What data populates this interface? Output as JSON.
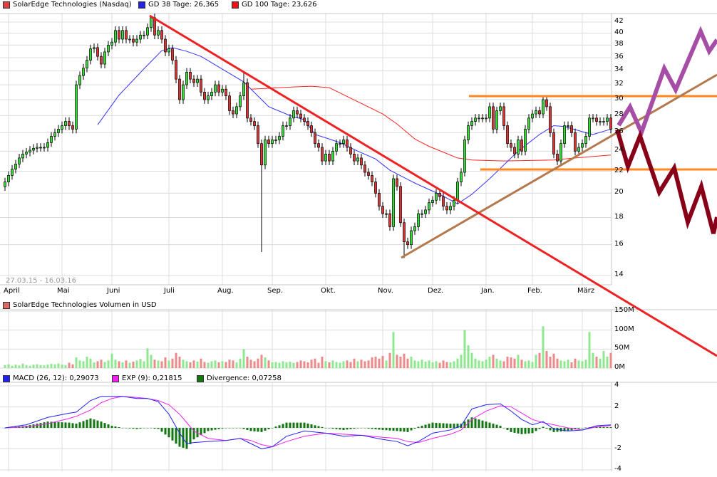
{
  "legend": {
    "price_label": "SolarEdge Technologies (Nasdaq)",
    "gd38_label": "GD 38 Tage: 26,365",
    "gd100_label": "GD 100 Tage: 23,626",
    "volume_label": "SolarEdge Technologies Volumen in USD",
    "macd_label": "MACD (26, 12): 0,29073",
    "exp_label": "EXP (9): 0,21815",
    "divergence_label": "Divergence: 0,07258",
    "date_range": "27.03.15 - 16.03.16"
  },
  "colors": {
    "price": "#e04040",
    "up": "#33dd33",
    "down": "#dd3333",
    "gd38": "#3333ff",
    "gd100": "#ff2222",
    "volume": "#dd6666",
    "volume_up": "#8fe88f",
    "volume_down": "#ec8a8a",
    "macd": "#2222ee",
    "exp": "#ee22ee",
    "divergence": "#117711",
    "trend_down": "#ee2222",
    "trend_up": "#b5794e",
    "channel": "#ff8822",
    "scenario_up": "#a64ea6",
    "scenario_down": "#880018"
  },
  "chart_data": [
    {
      "type": "candlestick",
      "title": "SolarEdge Technologies (Nasdaq)",
      "y_scale": "log",
      "ylim": [
        13.5,
        43.5
      ],
      "y_ticks": [
        14,
        16,
        18,
        20,
        22,
        24,
        26,
        28,
        30,
        32,
        34,
        36,
        38,
        40,
        42
      ],
      "grid": true,
      "x_ticks": [
        {
          "label": "April",
          "index": 0
        },
        {
          "label": "Mai",
          "index": 15
        },
        {
          "label": "Juni",
          "index": 29
        },
        {
          "label": "Juli",
          "index": 45
        },
        {
          "label": "Aug.",
          "index": 60
        },
        {
          "label": "Sep.",
          "index": 74
        },
        {
          "label": "Okt.",
          "index": 89
        },
        {
          "label": "Nov.",
          "index": 105
        },
        {
          "label": "Dez.",
          "index": 119
        },
        {
          "label": "Jan.",
          "index": 134
        },
        {
          "label": "Feb.",
          "index": 147
        },
        {
          "label": "März",
          "index": 161
        }
      ],
      "close": [
        21.0,
        21.6,
        22.2,
        22.7,
        23.3,
        23.7,
        23.9,
        24.1,
        24.3,
        24.4,
        24.4,
        24.4,
        24.9,
        25.6,
        26.0,
        26.4,
        26.8,
        27.3,
        26.8,
        26.4,
        32.0,
        33.3,
        34.4,
        35.6,
        37.4,
        37.6,
        36.2,
        35.0,
        36.9,
        38.0,
        38.5,
        40.5,
        39.0,
        40.5,
        39.0,
        39.0,
        38.5,
        39.0,
        39.7,
        39.7,
        41.0,
        42.8,
        39.7,
        40.5,
        39.0,
        36.9,
        37.4,
        35.6,
        32.8,
        30.0,
        32.0,
        33.8,
        32.8,
        32.3,
        32.8,
        31.0,
        30.0,
        30.5,
        31.0,
        32.0,
        31.0,
        31.4,
        30.5,
        28.6,
        28.2,
        29.1,
        30.5,
        32.3,
        27.7,
        27.3,
        26.8,
        24.8,
        22.6,
        25.2,
        24.8,
        25.2,
        25.2,
        25.6,
        26.8,
        26.8,
        27.7,
        28.6,
        28.2,
        27.7,
        27.3,
        26.8,
        26.0,
        24.8,
        24.4,
        23.0,
        23.7,
        23.0,
        24.0,
        24.8,
        24.8,
        25.2,
        24.4,
        23.7,
        23.0,
        23.3,
        22.6,
        21.9,
        21.6,
        21.0,
        20.0,
        18.9,
        18.3,
        18.3,
        17.3,
        21.3,
        20.6,
        17.6,
        16.2,
        16.0,
        17.0,
        17.3,
        18.3,
        18.3,
        18.6,
        19.2,
        19.4,
        20.0,
        19.7,
        18.9,
        18.6,
        18.9,
        19.4,
        21.0,
        21.9,
        25.2,
        26.8,
        27.3,
        27.7,
        27.7,
        27.7,
        27.7,
        29.1,
        26.4,
        28.6,
        29.1,
        26.8,
        24.8,
        24.4,
        23.7,
        25.2,
        24.0,
        26.4,
        27.7,
        28.2,
        28.6,
        28.2,
        30.0,
        29.1,
        26.0,
        23.7,
        23.0,
        24.8,
        26.8,
        26.8,
        26.0,
        24.0,
        24.4,
        24.8,
        25.6,
        27.7,
        27.7,
        27.3,
        27.3,
        27.3,
        27.7,
        26.4
      ],
      "wick_extremes": [
        {
          "index": 67,
          "high": 33.8
        },
        {
          "index": 72,
          "low": 15.5
        },
        {
          "index": 41,
          "high": 43.0
        },
        {
          "index": 112,
          "low": 15.1
        }
      ],
      "gd38": {
        "name": "GD 38 Tage",
        "points": [
          [
            26,
            26.9
          ],
          [
            32,
            30.6
          ],
          [
            39,
            34.3
          ],
          [
            44,
            37.1
          ],
          [
            47,
            37.6
          ],
          [
            51,
            37.0
          ],
          [
            55,
            36.2
          ],
          [
            67,
            32.4
          ],
          [
            74,
            29.1
          ],
          [
            80,
            28.0
          ],
          [
            84,
            27.5
          ],
          [
            87,
            25.8
          ],
          [
            91,
            25.3
          ],
          [
            94,
            24.9
          ],
          [
            99,
            24.0
          ],
          [
            104,
            23.2
          ],
          [
            108,
            22.1
          ],
          [
            115,
            20.9
          ],
          [
            122,
            19.9
          ],
          [
            127,
            19.1
          ],
          [
            131,
            19.9
          ],
          [
            136,
            21.3
          ],
          [
            144,
            24.0
          ],
          [
            150,
            25.8
          ],
          [
            154,
            26.8
          ],
          [
            157,
            26.7
          ],
          [
            163,
            26.0
          ],
          [
            165,
            25.8
          ],
          [
            170,
            26.4
          ]
        ]
      },
      "gd100": {
        "name": "GD 100 Tage",
        "points": [
          [
            69,
            31.4
          ],
          [
            81,
            31.7
          ],
          [
            86,
            31.8
          ],
          [
            91,
            31.6
          ],
          [
            106,
            28.2
          ],
          [
            110,
            27.0
          ],
          [
            115,
            25.3
          ],
          [
            119,
            24.5
          ],
          [
            127,
            23.3
          ],
          [
            131,
            23.1
          ],
          [
            140,
            23.0
          ],
          [
            154,
            23.1
          ],
          [
            160,
            23.3
          ],
          [
            170,
            23.6
          ]
        ]
      }
    },
    {
      "type": "bar",
      "title": "SolarEdge Technologies Volumen in USD",
      "ylim": [
        0,
        150
      ],
      "y_ticks": [
        {
          "value": 0,
          "label": "0M"
        },
        {
          "value": 50,
          "label": "50M"
        },
        {
          "value": 100,
          "label": "100M"
        },
        {
          "value": 150,
          "label": "150M"
        }
      ],
      "unit": "M USD",
      "values": [
        8,
        10,
        6,
        9,
        7,
        12,
        8,
        6,
        9,
        10,
        8,
        7,
        9,
        11,
        10,
        12,
        9,
        8,
        14,
        10,
        28,
        20,
        18,
        30,
        25,
        15,
        18,
        22,
        16,
        20,
        38,
        22,
        18,
        15,
        20,
        14,
        17,
        20,
        24,
        18,
        52,
        35,
        22,
        20,
        18,
        28,
        20,
        25,
        40,
        30,
        22,
        18,
        15,
        20,
        17,
        25,
        16,
        14,
        18,
        20,
        15,
        18,
        16,
        22,
        20,
        15,
        25,
        50,
        30,
        22,
        18,
        25,
        35,
        28,
        20,
        15,
        16,
        14,
        18,
        15,
        17,
        14,
        16,
        20,
        18,
        15,
        22,
        25,
        14,
        30,
        18,
        15,
        20,
        16,
        14,
        18,
        20,
        16,
        25,
        18,
        22,
        18,
        20,
        28,
        30,
        25,
        32,
        20,
        40,
        95,
        35,
        30,
        38,
        25,
        30,
        20,
        18,
        22,
        17,
        20,
        15,
        18,
        14,
        20,
        16,
        15,
        18,
        25,
        35,
        100,
        60,
        40,
        25,
        20,
        18,
        22,
        30,
        35,
        25,
        20,
        18,
        30,
        28,
        25,
        35,
        22,
        18,
        20,
        16,
        35,
        40,
        110,
        45,
        30,
        38,
        25,
        20,
        18,
        22,
        15,
        25,
        20,
        18,
        22,
        95,
        40,
        30,
        25,
        45,
        30,
        40
      ]
    },
    {
      "type": "line",
      "title": "MACD",
      "ylim": [
        -4,
        4
      ],
      "y_ticks": [
        -4,
        -2,
        0,
        2,
        4
      ],
      "series_names": [
        "MACD (26, 12)",
        "EXP (9)",
        "Divergence"
      ],
      "points": [
        [
          0,
          0,
          0
        ],
        [
          6,
          0.3,
          0.1
        ],
        [
          12,
          1.0,
          0.4
        ],
        [
          18,
          1.4,
          0.9
        ],
        [
          20,
          1.5,
          1.1
        ],
        [
          24,
          2.6,
          1.7
        ],
        [
          27,
          3.0,
          2.4
        ],
        [
          30,
          3.0,
          2.8
        ],
        [
          33,
          3.0,
          3.0
        ],
        [
          37,
          2.8,
          2.9
        ],
        [
          40,
          2.8,
          2.8
        ],
        [
          43,
          2.5,
          2.6
        ],
        [
          46,
          1.3,
          2.2
        ],
        [
          49,
          -0.5,
          1.3
        ],
        [
          51,
          -1.5,
          0.5
        ],
        [
          53,
          -1.4,
          -0.3
        ],
        [
          57,
          -1.3,
          -1.0
        ],
        [
          62,
          -1.2,
          -1.2
        ],
        [
          66,
          -1.0,
          -1.0
        ],
        [
          69,
          -1.5,
          -1.2
        ],
        [
          72,
          -2.0,
          -1.6
        ],
        [
          75,
          -1.8,
          -1.8
        ],
        [
          79,
          -0.8,
          -1.3
        ],
        [
          84,
          -0.3,
          -0.8
        ],
        [
          90,
          -0.5,
          -0.5
        ],
        [
          95,
          -0.8,
          -0.6
        ],
        [
          100,
          -0.7,
          -0.7
        ],
        [
          106,
          -1.1,
          -0.9
        ],
        [
          110,
          -1.3,
          -1.0
        ],
        [
          113,
          -1.7,
          -1.3
        ],
        [
          116,
          -1.3,
          -1.4
        ],
        [
          120,
          -0.5,
          -1.0
        ],
        [
          125,
          -0.2,
          -0.6
        ],
        [
          128,
          0.2,
          -0.2
        ],
        [
          131,
          1.8,
          0.8
        ],
        [
          135,
          2.2,
          1.6
        ],
        [
          139,
          2.3,
          2.1
        ],
        [
          142,
          1.6,
          2.0
        ],
        [
          145,
          0.8,
          1.4
        ],
        [
          148,
          0.3,
          0.8
        ],
        [
          151,
          0.6,
          0.5
        ],
        [
          154,
          -0.1,
          0.3
        ],
        [
          158,
          -0.3,
          0.0
        ],
        [
          162,
          -0.2,
          -0.2
        ],
        [
          166,
          0.2,
          0.1
        ],
        [
          170,
          0.29,
          0.22
        ]
      ]
    }
  ]
}
